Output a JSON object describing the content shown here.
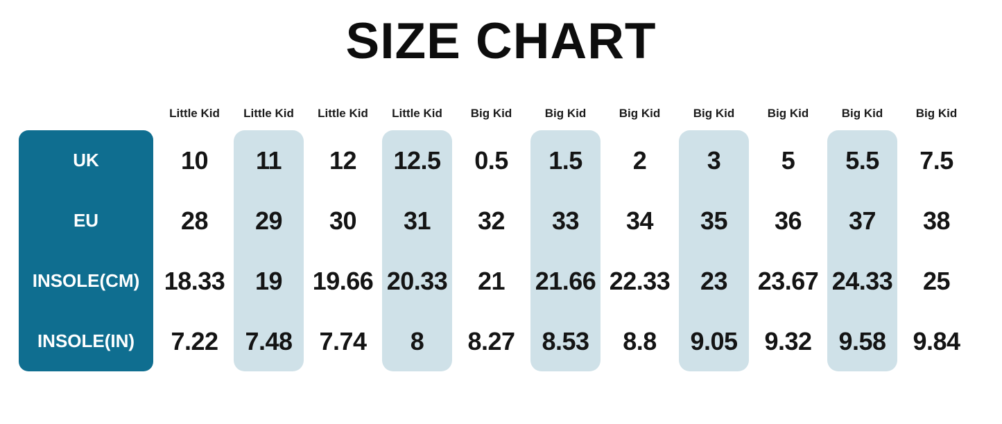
{
  "title": "SIZE CHART",
  "colors": {
    "label_bg": "#0f6e90",
    "highlight_bg": "#cfe1e8",
    "label_text": "#ffffff",
    "text": "#141414",
    "background": "#ffffff"
  },
  "table": {
    "row_labels": [
      "UK",
      "EU",
      "INSOLE(CM)",
      "INSOLE(IN)"
    ],
    "columns": [
      {
        "group": "Little Kid",
        "highlight": false,
        "values": [
          "10",
          "28",
          "18.33",
          "7.22"
        ]
      },
      {
        "group": "Little Kid",
        "highlight": true,
        "values": [
          "11",
          "29",
          "19",
          "7.48"
        ]
      },
      {
        "group": "Little Kid",
        "highlight": false,
        "values": [
          "12",
          "30",
          "19.66",
          "7.74"
        ]
      },
      {
        "group": "Little Kid",
        "highlight": true,
        "values": [
          "12.5",
          "31",
          "20.33",
          "8"
        ]
      },
      {
        "group": "Big Kid",
        "highlight": false,
        "values": [
          "0.5",
          "32",
          "21",
          "8.27"
        ]
      },
      {
        "group": "Big Kid",
        "highlight": true,
        "values": [
          "1.5",
          "33",
          "21.66",
          "8.53"
        ]
      },
      {
        "group": "Big Kid",
        "highlight": false,
        "values": [
          "2",
          "34",
          "22.33",
          "8.8"
        ]
      },
      {
        "group": "Big Kid",
        "highlight": true,
        "values": [
          "3",
          "35",
          "23",
          "9.05"
        ]
      },
      {
        "group": "Big Kid",
        "highlight": false,
        "values": [
          "5",
          "36",
          "23.67",
          "9.32"
        ]
      },
      {
        "group": "Big Kid",
        "highlight": true,
        "values": [
          "5.5",
          "37",
          "24.33",
          "9.58"
        ]
      },
      {
        "group": "Big Kid",
        "highlight": false,
        "values": [
          "7.5",
          "38",
          "25",
          "9.84"
        ]
      }
    ]
  },
  "chart_data": {
    "type": "table",
    "title": "SIZE CHART",
    "column_groups": [
      "Little Kid",
      "Little Kid",
      "Little Kid",
      "Little Kid",
      "Big Kid",
      "Big Kid",
      "Big Kid",
      "Big Kid",
      "Big Kid",
      "Big Kid",
      "Big Kid"
    ],
    "rows": [
      {
        "label": "UK",
        "values": [
          "10",
          "11",
          "12",
          "12.5",
          "0.5",
          "1.5",
          "2",
          "3",
          "5",
          "5.5",
          "7.5"
        ]
      },
      {
        "label": "EU",
        "values": [
          "28",
          "29",
          "30",
          "31",
          "32",
          "33",
          "34",
          "35",
          "36",
          "37",
          "38"
        ]
      },
      {
        "label": "INSOLE(CM)",
        "values": [
          "18.33",
          "19",
          "19.66",
          "20.33",
          "21",
          "21.66",
          "22.33",
          "23",
          "23.67",
          "24.33",
          "25"
        ]
      },
      {
        "label": "INSOLE(IN)",
        "values": [
          "7.22",
          "7.48",
          "7.74",
          "8",
          "8.27",
          "8.53",
          "8.8",
          "9.05",
          "9.32",
          "9.58",
          "9.84"
        ]
      }
    ],
    "layout": {
      "highlighted_columns": [
        1,
        3,
        5,
        7,
        9
      ],
      "header_row": true,
      "label_column_style": "teal-rounded"
    }
  }
}
